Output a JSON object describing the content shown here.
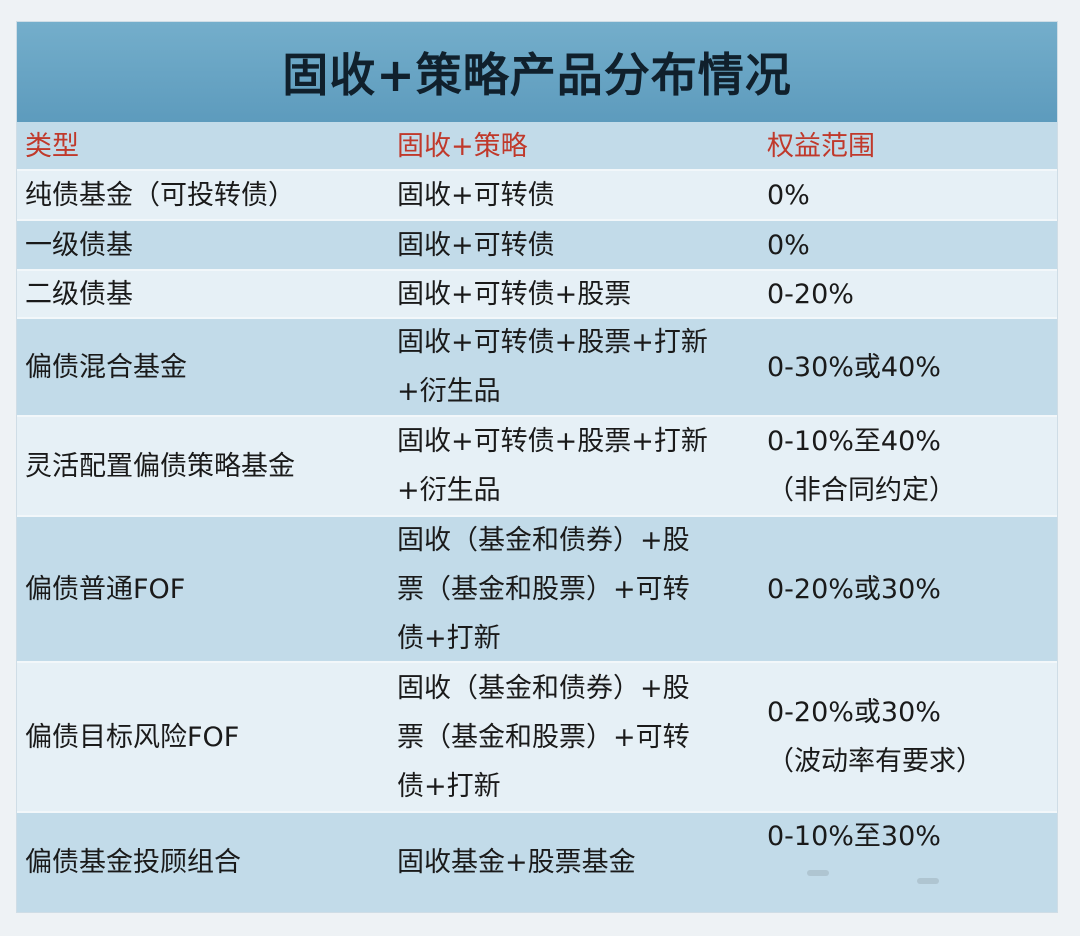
{
  "title": "固收+策略产品分布情况",
  "colors": {
    "title_bg": "#6aa6c6",
    "row_dark": "#c2dbe9",
    "row_light": "#e6f0f6",
    "header_text": "#c0392b",
    "body_text": "#1a1a1a"
  },
  "table": {
    "headers": [
      "类型",
      "固收+策略",
      "权益范围"
    ],
    "rows": [
      {
        "type": "纯债基金（可投转债）",
        "strategy": [
          "固收+可转债"
        ],
        "equity": [
          "0%"
        ]
      },
      {
        "type": "一级债基",
        "strategy": [
          "固收+可转债"
        ],
        "equity": [
          "0%"
        ]
      },
      {
        "type": "二级债基",
        "strategy": [
          "固收+可转债+股票"
        ],
        "equity": [
          "0-20%"
        ]
      },
      {
        "type": "偏债混合基金",
        "strategy": [
          "固收+可转债+股票+打新",
          "+衍生品"
        ],
        "equity": [
          "0-30%或40%"
        ]
      },
      {
        "type": "灵活配置偏债策略基金",
        "strategy": [
          "固收+可转债+股票+打新",
          "+衍生品"
        ],
        "equity": [
          "0-10%至40%",
          "（非合同约定）"
        ]
      },
      {
        "type": "偏债普通FOF",
        "strategy": [
          "固收（基金和债券）+股",
          "票（基金和股票）+可转",
          "债+打新"
        ],
        "equity": [
          "0-20%或30%"
        ]
      },
      {
        "type": "偏债目标风险FOF",
        "strategy": [
          "固收（基金和债券）+股",
          "票（基金和股票）+可转",
          "债+打新"
        ],
        "equity": [
          "0-20%或30%",
          "（波动率有要求）"
        ]
      },
      {
        "type": "偏债基金投顾组合",
        "strategy": [
          "固收基金+股票基金"
        ],
        "equity": [
          "0-10%至30%"
        ]
      }
    ]
  }
}
